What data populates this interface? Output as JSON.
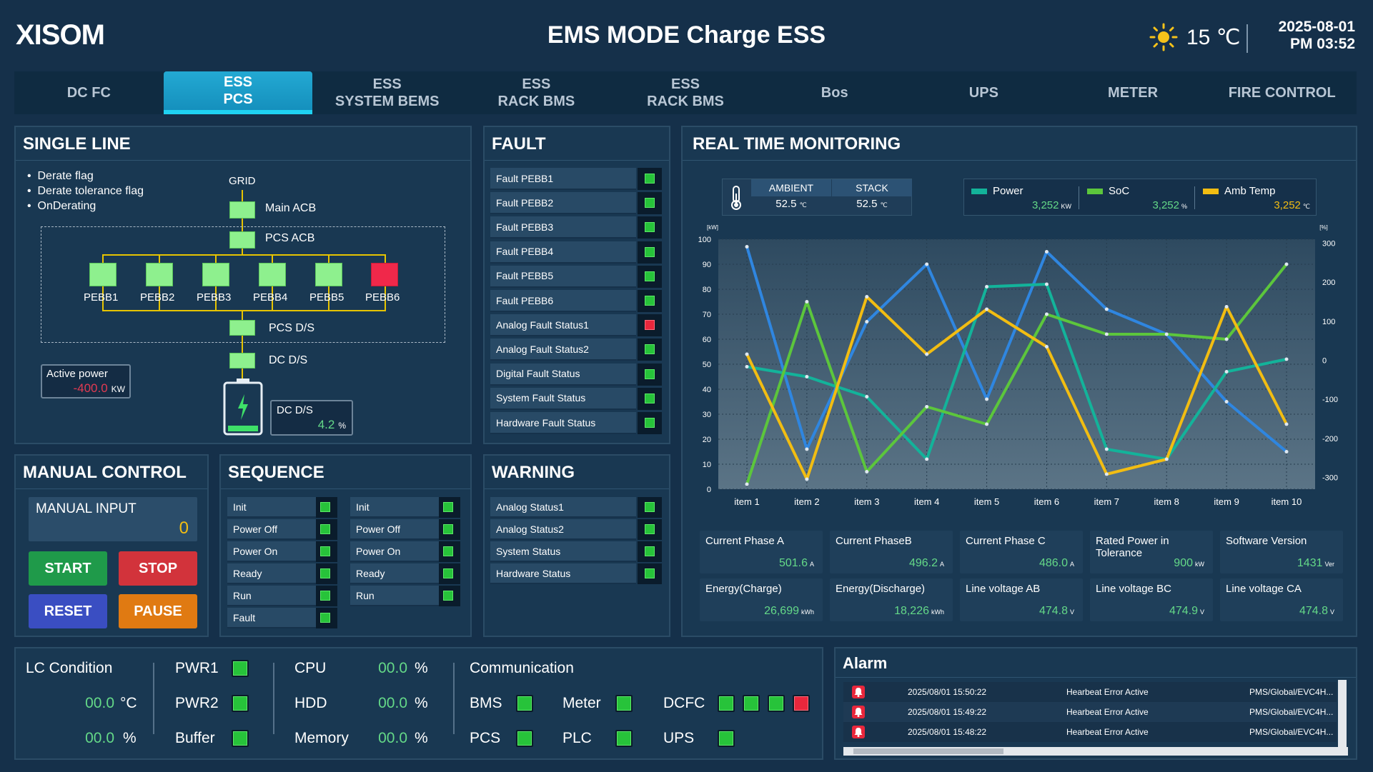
{
  "header": {
    "logo": "XISOM",
    "title": "EMS MODE Charge ESS",
    "temperature": "15 ℃",
    "date": "2025-08-01",
    "time": "PM 03:52",
    "weather_icon": "sun-icon"
  },
  "tabs": [
    {
      "label": "DC FC",
      "active": false
    },
    {
      "label": "ESS\nPCS",
      "active": true
    },
    {
      "label": "ESS\nSYSTEM BEMS",
      "active": false
    },
    {
      "label": "ESS\nRACK BMS",
      "active": false
    },
    {
      "label": "ESS\nRACK BMS",
      "active": false
    },
    {
      "label": "Bos",
      "active": false
    },
    {
      "label": "UPS",
      "active": false
    },
    {
      "label": "METER",
      "active": false
    },
    {
      "label": "FIRE CONTROL",
      "active": false
    }
  ],
  "single_line": {
    "title": "SINGLE LINE",
    "flags": [
      "Derate flag",
      "Derate tolerance flag",
      "OnDerating"
    ],
    "grid": "GRID",
    "main_acb": "Main ACB",
    "pcs_acb": "PCS ACB",
    "pcs_ds": "PCS D/S",
    "dc_ds": "DC D/S",
    "pebbs": [
      {
        "name": "PEBB1",
        "status": "ok"
      },
      {
        "name": "PEBB2",
        "status": "ok"
      },
      {
        "name": "PEBB3",
        "status": "ok"
      },
      {
        "name": "PEBB4",
        "status": "ok"
      },
      {
        "name": "PEBB5",
        "status": "ok"
      },
      {
        "name": "PEBB6",
        "status": "fault"
      }
    ],
    "active_power": {
      "label": "Active power",
      "value": "-400.0",
      "unit": "KW"
    },
    "dc_box": {
      "label": "DC D/S",
      "value": "4.2",
      "unit": "%"
    }
  },
  "fault": {
    "title": "FAULT",
    "items": [
      {
        "label": "Fault PEBB1",
        "status": "ok"
      },
      {
        "label": "Fault PEBB2",
        "status": "ok"
      },
      {
        "label": "Fault PEBB3",
        "status": "ok"
      },
      {
        "label": "Fault PEBB4",
        "status": "ok"
      },
      {
        "label": "Fault PEBB5",
        "status": "ok"
      },
      {
        "label": "Fault PEBB6",
        "status": "ok"
      },
      {
        "label": "Analog Fault Status1",
        "status": "fault"
      },
      {
        "label": "Analog Fault Status2",
        "status": "ok"
      },
      {
        "label": "Digital Fault Status",
        "status": "ok"
      },
      {
        "label": "System Fault Status",
        "status": "ok"
      },
      {
        "label": "Hardware Fault Status",
        "status": "ok"
      }
    ]
  },
  "manual": {
    "title": "MANUAL CONTROL",
    "input_label": "MANUAL INPUT",
    "input_value": "0",
    "buttons": [
      {
        "label": "START",
        "color": "#1f9a4a"
      },
      {
        "label": "STOP",
        "color": "#d2333b"
      },
      {
        "label": "RESET",
        "color": "#3a4ec2"
      },
      {
        "label": "PAUSE",
        "color": "#e07a12"
      }
    ]
  },
  "sequence": {
    "title": "SEQUENCE",
    "col1": [
      {
        "label": "Init"
      },
      {
        "label": "Power Off"
      },
      {
        "label": "Power On"
      },
      {
        "label": "Ready"
      },
      {
        "label": "Run"
      },
      {
        "label": "Fault"
      }
    ],
    "col2": [
      {
        "label": "Init"
      },
      {
        "label": "Power Off"
      },
      {
        "label": "Power On"
      },
      {
        "label": "Ready"
      },
      {
        "label": "Run"
      }
    ]
  },
  "warning": {
    "title": "WARNING",
    "items": [
      {
        "label": "Analog Status1"
      },
      {
        "label": "Analog Status2"
      },
      {
        "label": "System Status"
      },
      {
        "label": "Hardware Status"
      }
    ]
  },
  "monitor": {
    "title": "REAL TIME MONITORING",
    "ambient_label": "AMBIENT",
    "ambient_value": "52.5",
    "stack_label": "STACK",
    "stack_value": "52.5",
    "temp_unit": "℃",
    "legend": [
      {
        "name": "Power",
        "value": "3,252",
        "unit": "KW",
        "color": "#13b39a"
      },
      {
        "name": "SoC",
        "value": "3,252",
        "unit": "%",
        "color": "#5cc63c"
      },
      {
        "name": "Amb Temp",
        "value": "3,252",
        "unit": "℃",
        "color": "#f2bd12"
      }
    ]
  },
  "chart_data": {
    "type": "line",
    "categories": [
      "item 1",
      "item 2",
      "item 3",
      "item 4",
      "item 5",
      "item 6",
      "item 7",
      "item 8",
      "item 9",
      "item 10"
    ],
    "y_left": {
      "label": "[kW]",
      "ticks": [
        0,
        10,
        20,
        30,
        40,
        50,
        60,
        70,
        80,
        90,
        100
      ],
      "ylim": [
        0,
        100
      ]
    },
    "y_right": {
      "label": "[%]",
      "ticks": [
        -300,
        -200,
        -100,
        0,
        100,
        200,
        300
      ],
      "ylim": [
        -330,
        310
      ]
    },
    "grid": true,
    "series": [
      {
        "color": "#2f86e0",
        "axis": "left",
        "values": [
          97,
          16,
          67,
          90,
          36,
          95,
          72,
          62,
          35,
          15
        ]
      },
      {
        "color": "#13b39a",
        "axis": "left",
        "values": [
          49,
          45,
          37,
          12,
          81,
          82,
          16,
          12,
          47,
          52
        ]
      },
      {
        "color": "#5cc63c",
        "axis": "left",
        "values": [
          2,
          75,
          7,
          33,
          26,
          70,
          62,
          62,
          60,
          90
        ]
      },
      {
        "color": "#f2bd12",
        "axis": "left",
        "values": [
          54,
          4,
          77,
          54,
          72,
          57,
          6,
          12,
          73,
          26
        ]
      }
    ]
  },
  "metrics": [
    {
      "label": "Current Phase A",
      "value": "501.6",
      "unit": "A"
    },
    {
      "label": "Current PhaseB",
      "value": "496.2",
      "unit": "A"
    },
    {
      "label": "Current Phase C",
      "value": "486.0",
      "unit": "A"
    },
    {
      "label": "Rated Power in Tolerance",
      "value": "900",
      "unit": "kW"
    },
    {
      "label": "Software Version",
      "value": "1431",
      "unit": "Ver"
    },
    {
      "label": "Energy(Charge)",
      "value": "26,699",
      "unit": "kWh"
    },
    {
      "label": "Energy(Discharge)",
      "value": "18,226",
      "unit": "kWh"
    },
    {
      "label": "Line voltage AB",
      "value": "474.8",
      "unit": "V"
    },
    {
      "label": "Line voltage BC",
      "value": "474.9",
      "unit": "V"
    },
    {
      "label": "Line voltage CA",
      "value": "474.8",
      "unit": "V"
    }
  ],
  "lc": {
    "title": "LC Condition",
    "temp_value": "00.0",
    "temp_unit": "°C",
    "hum_value": "00.0",
    "hum_unit": "%",
    "pwr1": "PWR1",
    "pwr2": "PWR2",
    "buffer": "Buffer",
    "cpu": "CPU",
    "hdd": "HDD",
    "memory": "Memory",
    "cpu_value": "00.0",
    "hdd_value": "00.0",
    "memory_value": "00.0",
    "pct": "%"
  },
  "comm": {
    "title": "Communication",
    "bms": "BMS",
    "meter": "Meter",
    "dcfc": "DCFC",
    "pcs": "PCS",
    "plc": "PLC",
    "ups": "UPS",
    "dcfc_states": [
      "ok",
      "ok",
      "ok",
      "fault"
    ]
  },
  "alarm": {
    "title": "Alarm",
    "rows": [
      {
        "time": "2025/08/01 15:50:22",
        "message": "Hearbeat Error Active",
        "source": "PMS/Global/EVC4H..."
      },
      {
        "time": "2025/08/01 15:49:22",
        "message": "Hearbeat Error Active",
        "source": "PMS/Global/EVC4H..."
      },
      {
        "time": "2025/08/01 15:48:22",
        "message": "Hearbeat Error Active",
        "source": "PMS/Global/EVC4H..."
      }
    ]
  }
}
